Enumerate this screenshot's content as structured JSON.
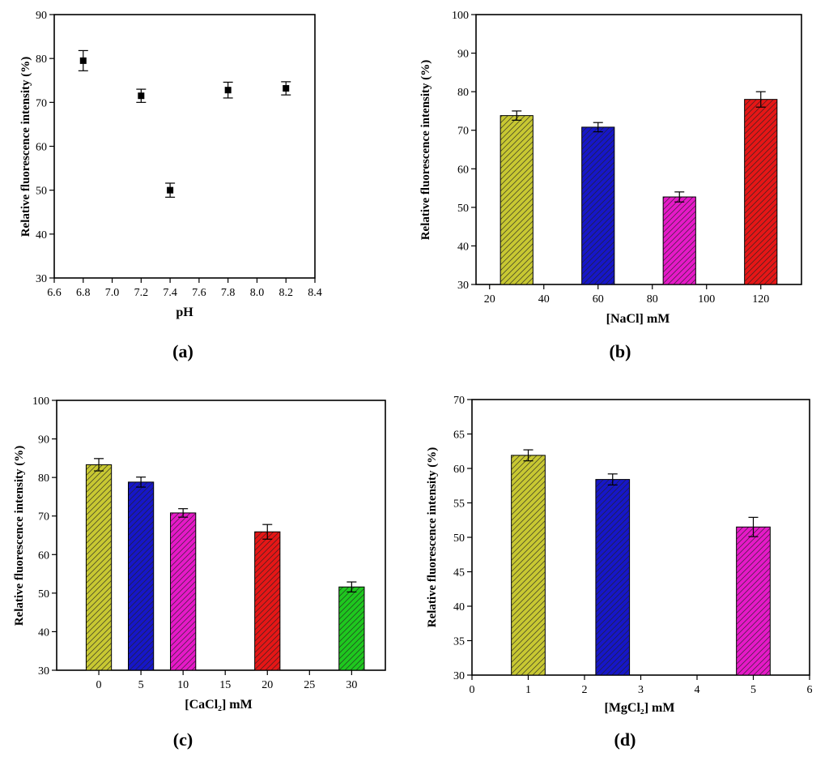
{
  "chart_data": [
    {
      "id": "a",
      "type": "scatter",
      "panel_label": "(a)",
      "xlabel": "pH",
      "ylabel": "Relative fluorescence intensity (%)",
      "xlim": [
        6.6,
        8.4
      ],
      "ylim": [
        30,
        90
      ],
      "xticks": [
        "6.6",
        "6.8",
        "7.0",
        "7.2",
        "7.4",
        "7.6",
        "7.8",
        "8.0",
        "8.2",
        "8.4"
      ],
      "yticks": [
        "30",
        "40",
        "50",
        "60",
        "70",
        "80",
        "90"
      ],
      "x": [
        6.8,
        7.2,
        7.4,
        7.8,
        8.2
      ],
      "y": [
        79.5,
        71.5,
        50.0,
        72.8,
        73.2
      ],
      "err": [
        2.3,
        1.5,
        1.6,
        1.8,
        1.5
      ]
    },
    {
      "id": "b",
      "type": "bar",
      "panel_label": "(b)",
      "xlabel": "[NaCl] mM",
      "ylabel": "Relative fluorescence intensity (%)",
      "xlim": [
        15,
        135
      ],
      "ylim": [
        30,
        100
      ],
      "xticks": [
        "20",
        "40",
        "60",
        "80",
        "100",
        "120"
      ],
      "yticks": [
        "30",
        "40",
        "50",
        "60",
        "70",
        "80",
        "90",
        "100"
      ],
      "bar_width": 12,
      "x": [
        30,
        60,
        90,
        120
      ],
      "values": [
        73.8,
        70.8,
        52.7,
        78.0
      ],
      "err": [
        1.2,
        1.2,
        1.3,
        2.0
      ],
      "colors": [
        "#c8c832",
        "#1616c8",
        "#e619c8",
        "#e61616"
      ]
    },
    {
      "id": "c",
      "type": "bar",
      "panel_label": "(c)",
      "xlabel": "[CaCl₂] mM",
      "ylabel": "Relative fluorescence intensity (%)",
      "xlim": [
        -5,
        34
      ],
      "ylim": [
        30,
        100
      ],
      "xticks": [
        "0",
        "5",
        "10",
        "15",
        "20",
        "25",
        "30"
      ],
      "yticks": [
        "30",
        "40",
        "50",
        "60",
        "70",
        "80",
        "90",
        "100"
      ],
      "bar_width": 3,
      "x": [
        0,
        5,
        10,
        20,
        30
      ],
      "values": [
        83.3,
        78.8,
        70.8,
        65.9,
        51.6
      ],
      "err": [
        1.6,
        1.3,
        1.1,
        1.9,
        1.3
      ],
      "colors": [
        "#c8c832",
        "#1616c8",
        "#e619c8",
        "#e61616",
        "#1ec81e"
      ]
    },
    {
      "id": "d",
      "type": "bar",
      "panel_label": "(d)",
      "xlabel": "[MgCl₂] mM",
      "ylabel": "Relative fluorescence intensity (%)",
      "xlim": [
        0,
        6
      ],
      "ylim": [
        30,
        70
      ],
      "xticks": [
        "0",
        "1",
        "2",
        "3",
        "4",
        "5",
        "6"
      ],
      "yticks": [
        "30",
        "35",
        "40",
        "45",
        "50",
        "55",
        "60",
        "65",
        "70"
      ],
      "bar_width": 0.6,
      "x": [
        1,
        2.5,
        5
      ],
      "values": [
        61.9,
        58.4,
        51.5
      ],
      "err": [
        0.8,
        0.8,
        1.4
      ],
      "colors": [
        "#c8c832",
        "#1616c8",
        "#e619c8"
      ]
    }
  ]
}
